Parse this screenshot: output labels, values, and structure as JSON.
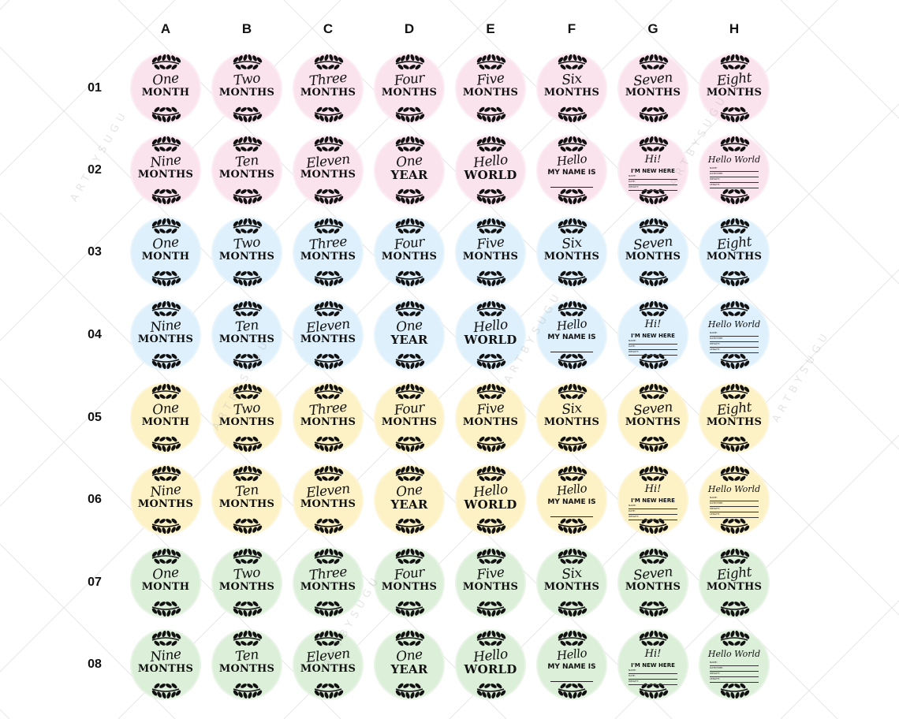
{
  "columns": [
    "A",
    "B",
    "C",
    "D",
    "E",
    "F",
    "G",
    "H"
  ],
  "rows": [
    "01",
    "02",
    "03",
    "04",
    "05",
    "06",
    "07",
    "08"
  ],
  "watermark": "ARTBYSUGU",
  "colors": {
    "pink": "#fbe3ee",
    "blue": "#def0fb",
    "yellow": "#fdf2c6",
    "green": "#dcefd9",
    "ink": "#111111"
  },
  "row_colors": [
    "pink",
    "pink",
    "blue",
    "blue",
    "yellow",
    "yellow",
    "green",
    "green"
  ],
  "set_a": [
    {
      "script": "One",
      "bold": "MONTH"
    },
    {
      "script": "Two",
      "bold": "MONTHS"
    },
    {
      "script": "Three",
      "bold": "MONTHS"
    },
    {
      "script": "Four",
      "bold": "MONTHS"
    },
    {
      "script": "Five",
      "bold": "MONTHS"
    },
    {
      "script": "Six",
      "bold": "MONTHS"
    },
    {
      "script": "Seven",
      "bold": "MONTHS"
    },
    {
      "script": "Eight",
      "bold": "MONTHS"
    }
  ],
  "set_b": [
    {
      "script": "Nine",
      "bold": "MONTHS"
    },
    {
      "script": "Ten",
      "bold": "MONTHS"
    },
    {
      "script": "Eleven",
      "bold": "MONTHS"
    },
    {
      "script": "One",
      "bold": "YEAR"
    },
    {
      "script": "Hello",
      "bold": "WORLD"
    },
    {
      "script": "Hello",
      "bold": "MY NAME IS",
      "kind": "name"
    },
    {
      "script": "Hi!",
      "bold": "I'M NEW HERE",
      "kind": "new"
    },
    {
      "script": "Hello World",
      "kind": "form"
    }
  ],
  "form_fields": [
    "NAME:",
    "DATE/TIME:",
    "WEIGHT:",
    "LENGTH:"
  ],
  "new_here_fields": [
    "NAME:",
    "DATE:",
    "TIME:",
    "WEIGHT:",
    "LENGTH:"
  ]
}
